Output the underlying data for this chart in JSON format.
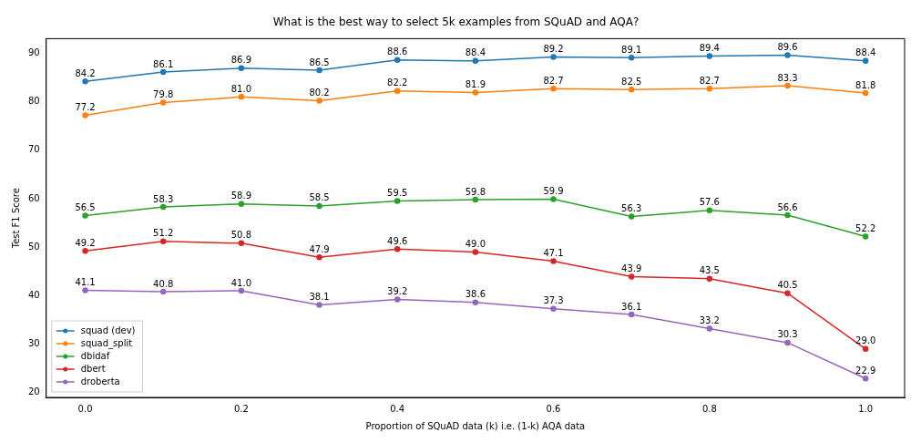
{
  "chart_data": {
    "type": "line",
    "title": "What is the best way to select 5k examples from SQuAD and AQA?",
    "xlabel": "Proportion of SQuAD data (k) i.e. (1-k) AQA data",
    "ylabel": "Test F1 Score",
    "x": [
      0.0,
      0.1,
      0.2,
      0.3,
      0.4,
      0.5,
      0.6,
      0.7,
      0.8,
      0.9,
      1.0
    ],
    "series": [
      {
        "name": "squad (dev)",
        "color": "#1f77b4",
        "values": [
          84.2,
          86.1,
          86.9,
          86.5,
          88.6,
          88.4,
          89.2,
          89.1,
          89.4,
          89.6,
          88.4
        ],
        "value_labels": [
          "84.2",
          "86.1",
          "86.9",
          "86.5",
          "88.6",
          "88.4",
          "89.2",
          "89.1",
          "89.4",
          "89.6",
          "88.4"
        ]
      },
      {
        "name": "squad_split",
        "color": "#ff7f0e",
        "values": [
          77.2,
          79.8,
          81.0,
          80.2,
          82.2,
          81.9,
          82.7,
          82.5,
          82.7,
          83.3,
          81.8
        ],
        "value_labels": [
          "77.2",
          "79.8",
          "81.0",
          "80.2",
          "82.2",
          "81.9",
          "82.7",
          "82.5",
          "82.7",
          "83.3",
          "81.8"
        ]
      },
      {
        "name": "dbidaf",
        "color": "#2ca02c",
        "values": [
          56.5,
          58.3,
          58.9,
          58.5,
          59.5,
          59.8,
          59.9,
          56.3,
          57.6,
          56.6,
          52.2
        ],
        "value_labels": [
          "56.5",
          "58.3",
          "58.9",
          "58.5",
          "59.5",
          "59.8",
          "59.9",
          "56.3",
          "57.6",
          "56.6",
          "52.2"
        ]
      },
      {
        "name": "dbert",
        "color": "#d62728",
        "values": [
          49.2,
          51.2,
          50.8,
          47.9,
          49.6,
          49.0,
          47.1,
          43.9,
          43.5,
          40.5,
          29.0
        ],
        "value_labels": [
          "49.2",
          "51.2",
          "50.8",
          "47.9",
          "49.6",
          "49.0",
          "47.1",
          "43.9",
          "43.5",
          "40.5",
          "29.0"
        ]
      },
      {
        "name": "droberta",
        "color": "#9467bd",
        "values": [
          41.1,
          40.8,
          41.0,
          38.1,
          39.2,
          38.6,
          37.3,
          36.1,
          33.2,
          30.3,
          22.9
        ],
        "value_labels": [
          "41.1",
          "40.8",
          "41.0",
          "38.1",
          "39.2",
          "38.6",
          "37.3",
          "36.1",
          "33.2",
          "30.3",
          "22.9"
        ]
      }
    ],
    "xlim": [
      -0.05,
      1.05
    ],
    "ylim": [
      19,
      93
    ],
    "xticks": [
      {
        "value": 0,
        "label": "0.0"
      },
      {
        "value": 0.2,
        "label": "0.2"
      },
      {
        "value": 0.4,
        "label": "0.4"
      },
      {
        "value": 0.6,
        "label": "0.6"
      },
      {
        "value": 0.8,
        "label": "0.8"
      },
      {
        "value": 1,
        "label": "1.0"
      }
    ],
    "yticks": [
      20,
      30,
      40,
      50,
      60,
      70,
      80,
      90
    ],
    "legend": "bottom left",
    "grid": false,
    "marker": "circle",
    "line_style": "solid"
  }
}
